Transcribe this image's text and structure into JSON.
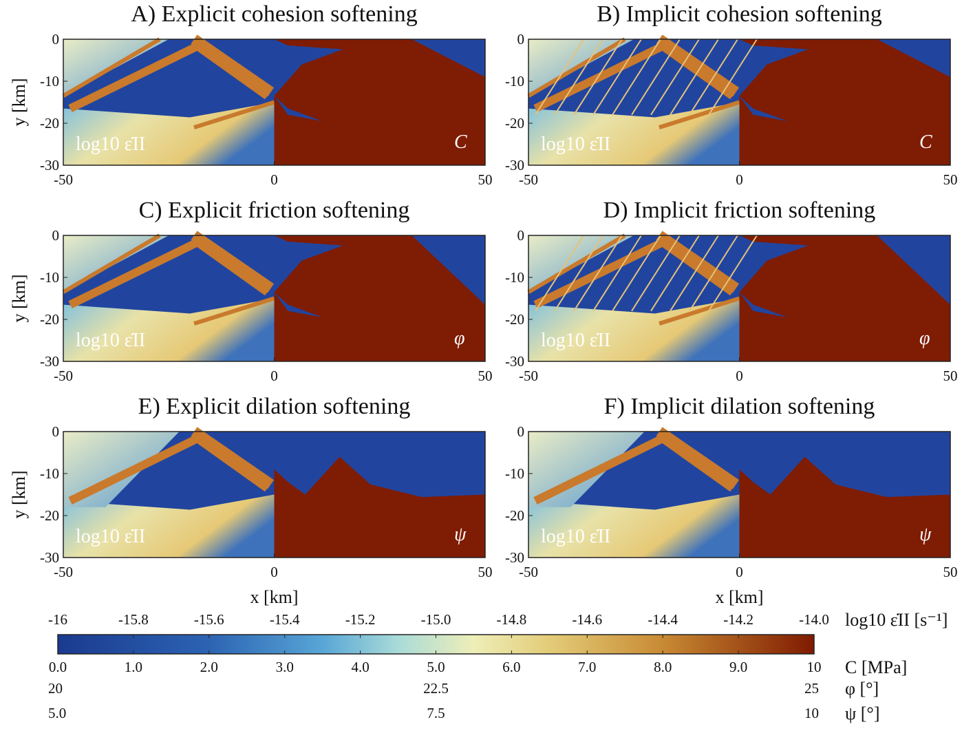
{
  "chart_data": [
    {
      "type": "heatmap",
      "title": "A) Explicit cohesion softening",
      "left_label": "log10 ε̇II",
      "right_label": "C",
      "ylabel": "y [km]",
      "xlim": [
        -50,
        50
      ],
      "xticks": [
        -50,
        0,
        50
      ],
      "ylim": [
        -30,
        0
      ],
      "yticks": [
        0,
        -10,
        -20,
        -30
      ]
    },
    {
      "type": "heatmap",
      "title": "B) Implicit cohesion softening",
      "left_label": "log10 ε̇II",
      "right_label": "C",
      "xlim": [
        -50,
        50
      ],
      "xticks": [
        -50,
        0,
        50
      ],
      "ylim": [
        -30,
        0
      ],
      "yticks": [
        0,
        -10,
        -20,
        -30
      ]
    },
    {
      "type": "heatmap",
      "title": "C) Explicit friction softening",
      "left_label": "log10 ε̇II",
      "right_label": "φ",
      "ylabel": "y [km]",
      "xlim": [
        -50,
        50
      ],
      "xticks": [
        -50,
        0,
        50
      ],
      "ylim": [
        -30,
        0
      ],
      "yticks": [
        0,
        -10,
        -20,
        -30
      ]
    },
    {
      "type": "heatmap",
      "title": "D) Implicit friction softening",
      "left_label": "log10 ε̇II",
      "right_label": "φ",
      "xlim": [
        -50,
        50
      ],
      "xticks": [
        -50,
        0,
        50
      ],
      "ylim": [
        -30,
        0
      ],
      "yticks": [
        0,
        -10,
        -20,
        -30
      ]
    },
    {
      "type": "heatmap",
      "title": "E) Explicit dilation softening",
      "left_label": "log10 ε̇II",
      "right_label": "ψ",
      "ylabel": "y [km]",
      "xlabel": "x [km]",
      "xlim": [
        -50,
        50
      ],
      "xticks": [
        -50,
        0,
        50
      ],
      "ylim": [
        -30,
        0
      ],
      "yticks": [
        0,
        -10,
        -20,
        -30
      ]
    },
    {
      "type": "heatmap",
      "title": "F) Implicit dilation softening",
      "left_label": "log10 ε̇II",
      "right_label": "ψ",
      "xlabel": "x [km]",
      "xlim": [
        -50,
        50
      ],
      "xticks": [
        -50,
        0,
        50
      ],
      "ylim": [
        -30,
        0
      ],
      "yticks": [
        0,
        -10,
        -20,
        -30
      ]
    }
  ],
  "colorbar": {
    "scales": [
      {
        "label": "log10 ε̇II [s⁻¹]",
        "lim": [
          -16,
          -14
        ],
        "ticks": [
          -16,
          -15.8,
          -15.6,
          -15.4,
          -15.2,
          {
            "value": -15,
            "label": "-15.0"
          },
          -14.8,
          -14.6,
          -14.4,
          -14.2,
          {
            "value": -14,
            "label": "-14.0"
          }
        ]
      },
      {
        "label": "C [MPa]",
        "lim": [
          0,
          10
        ],
        "ticks": [
          {
            "value": 0,
            "label": "0.0"
          },
          {
            "value": 1,
            "label": "1.0"
          },
          {
            "value": 2,
            "label": "2.0"
          },
          {
            "value": 3,
            "label": "3.0"
          },
          {
            "value": 4,
            "label": "4.0"
          },
          {
            "value": 5,
            "label": "5.0"
          },
          {
            "value": 6,
            "label": "6.0"
          },
          {
            "value": 7,
            "label": "7.0"
          },
          {
            "value": 8,
            "label": "8.0"
          },
          {
            "value": 9,
            "label": "9.0"
          },
          10
        ]
      },
      {
        "label": "φ [°]",
        "lim": [
          20,
          25
        ],
        "ticks": [
          20,
          22.5,
          25
        ]
      },
      {
        "label": "ψ [°]",
        "lim": [
          5,
          10
        ],
        "ticks": [
          {
            "value": 5,
            "label": "5.0"
          },
          7.5,
          10
        ]
      }
    ]
  }
}
